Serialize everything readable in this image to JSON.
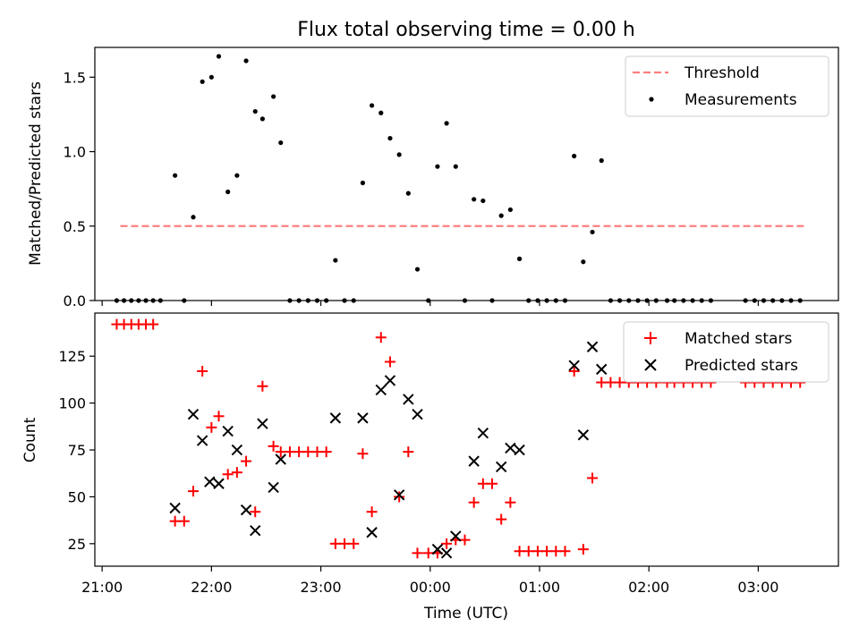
{
  "chart_data": [
    {
      "type": "scatter",
      "title": "Flux total observing time = 0.00 h",
      "ylabel": "Matched/Predicted stars",
      "xlabel": "",
      "ylim": [
        0,
        1.7
      ],
      "xlim": [
        "20:56",
        "03:44"
      ],
      "yticks": [
        0.0,
        0.5,
        1.0,
        1.5
      ],
      "ytick_labels": [
        "0.0",
        "0.5",
        "1.0",
        "1.5"
      ],
      "legend_position": "top-right",
      "grid": false,
      "threshold": {
        "name": "Threshold",
        "value": 0.5,
        "x_start": "21:10",
        "x_end": "03:25",
        "color": "#ff7f7f"
      },
      "measurements": {
        "name": "Measurements",
        "color": "#000000",
        "points": [
          {
            "x": "21:08",
            "y": 0.0
          },
          {
            "x": "21:12",
            "y": 0.0
          },
          {
            "x": "21:16",
            "y": 0.0
          },
          {
            "x": "21:20",
            "y": 0.0
          },
          {
            "x": "21:24",
            "y": 0.0
          },
          {
            "x": "21:28",
            "y": 0.0
          },
          {
            "x": "21:32",
            "y": 0.0
          },
          {
            "x": "21:40",
            "y": 0.84
          },
          {
            "x": "21:45",
            "y": 0.0
          },
          {
            "x": "21:50",
            "y": 0.56
          },
          {
            "x": "21:55",
            "y": 1.47
          },
          {
            "x": "22:00",
            "y": 1.5
          },
          {
            "x": "22:04",
            "y": 1.64
          },
          {
            "x": "22:09",
            "y": 0.73
          },
          {
            "x": "22:14",
            "y": 0.84
          },
          {
            "x": "22:19",
            "y": 1.61
          },
          {
            "x": "22:24",
            "y": 1.27
          },
          {
            "x": "22:28",
            "y": 1.22
          },
          {
            "x": "22:34",
            "y": 1.37
          },
          {
            "x": "22:38",
            "y": 1.06
          },
          {
            "x": "22:43",
            "y": 0.0
          },
          {
            "x": "22:48",
            "y": 0.0
          },
          {
            "x": "22:53",
            "y": 0.0
          },
          {
            "x": "22:58",
            "y": 0.0
          },
          {
            "x": "23:03",
            "y": 0.0
          },
          {
            "x": "23:08",
            "y": 0.27
          },
          {
            "x": "23:13",
            "y": 0.0
          },
          {
            "x": "23:18",
            "y": 0.0
          },
          {
            "x": "23:23",
            "y": 0.79
          },
          {
            "x": "23:28",
            "y": 1.31
          },
          {
            "x": "23:33",
            "y": 1.26
          },
          {
            "x": "23:38",
            "y": 1.09
          },
          {
            "x": "23:43",
            "y": 0.98
          },
          {
            "x": "23:48",
            "y": 0.72
          },
          {
            "x": "23:53",
            "y": 0.21
          },
          {
            "x": "23:59",
            "y": 0.0
          },
          {
            "x": "00:04",
            "y": 0.9
          },
          {
            "x": "00:09",
            "y": 1.19
          },
          {
            "x": "00:14",
            "y": 0.9
          },
          {
            "x": "00:19",
            "y": 0.0
          },
          {
            "x": "00:24",
            "y": 0.68
          },
          {
            "x": "00:29",
            "y": 0.67
          },
          {
            "x": "00:34",
            "y": 0.0
          },
          {
            "x": "00:39",
            "y": 0.57
          },
          {
            "x": "00:44",
            "y": 0.61
          },
          {
            "x": "00:49",
            "y": 0.28
          },
          {
            "x": "00:54",
            "y": 0.0
          },
          {
            "x": "00:59",
            "y": 0.0
          },
          {
            "x": "01:04",
            "y": 0.0
          },
          {
            "x": "01:09",
            "y": 0.0
          },
          {
            "x": "01:14",
            "y": 0.0
          },
          {
            "x": "01:19",
            "y": 0.97
          },
          {
            "x": "01:24",
            "y": 0.26
          },
          {
            "x": "01:29",
            "y": 0.46
          },
          {
            "x": "01:34",
            "y": 0.94
          },
          {
            "x": "01:39",
            "y": 0.0
          },
          {
            "x": "01:44",
            "y": 0.0
          },
          {
            "x": "01:49",
            "y": 0.0
          },
          {
            "x": "01:54",
            "y": 0.0
          },
          {
            "x": "01:59",
            "y": 0.0
          },
          {
            "x": "02:04",
            "y": 0.0
          },
          {
            "x": "02:10",
            "y": 0.0
          },
          {
            "x": "02:14",
            "y": 0.0
          },
          {
            "x": "02:19",
            "y": 0.0
          },
          {
            "x": "02:24",
            "y": 0.0
          },
          {
            "x": "02:29",
            "y": 0.0
          },
          {
            "x": "02:34",
            "y": 0.0
          },
          {
            "x": "02:53",
            "y": 0.0
          },
          {
            "x": "02:58",
            "y": 0.0
          },
          {
            "x": "03:03",
            "y": 0.0
          },
          {
            "x": "03:08",
            "y": 0.0
          },
          {
            "x": "03:13",
            "y": 0.0
          },
          {
            "x": "03:18",
            "y": 0.0
          },
          {
            "x": "03:23",
            "y": 0.0
          }
        ]
      }
    },
    {
      "type": "scatter",
      "title": "",
      "ylabel": "Count",
      "xlabel": "Time (UTC)",
      "ylim": [
        13,
        148
      ],
      "xlim": [
        "20:56",
        "03:44"
      ],
      "xticks": [
        "21:00",
        "22:00",
        "23:00",
        "00:00",
        "01:00",
        "02:00",
        "03:00"
      ],
      "yticks": [
        25,
        50,
        75,
        100,
        125
      ],
      "ytick_labels": [
        "25",
        "50",
        "75",
        "100",
        "125"
      ],
      "legend_position": "top-right",
      "grid": false,
      "series": [
        {
          "name": "Matched stars",
          "marker": "plus",
          "color": "#ff0000",
          "points": [
            {
              "x": "21:08",
              "y": 142
            },
            {
              "x": "21:12",
              "y": 142
            },
            {
              "x": "21:16",
              "y": 142
            },
            {
              "x": "21:20",
              "y": 142
            },
            {
              "x": "21:24",
              "y": 142
            },
            {
              "x": "21:28",
              "y": 142
            },
            {
              "x": "21:40",
              "y": 37
            },
            {
              "x": "21:45",
              "y": 37
            },
            {
              "x": "21:50",
              "y": 53
            },
            {
              "x": "21:55",
              "y": 117
            },
            {
              "x": "22:00",
              "y": 87
            },
            {
              "x": "22:04",
              "y": 93
            },
            {
              "x": "22:09",
              "y": 62
            },
            {
              "x": "22:14",
              "y": 63
            },
            {
              "x": "22:19",
              "y": 69
            },
            {
              "x": "22:24",
              "y": 42
            },
            {
              "x": "22:28",
              "y": 109
            },
            {
              "x": "22:34",
              "y": 77
            },
            {
              "x": "22:38",
              "y": 74
            },
            {
              "x": "22:43",
              "y": 74
            },
            {
              "x": "22:48",
              "y": 74
            },
            {
              "x": "22:53",
              "y": 74
            },
            {
              "x": "22:58",
              "y": 74
            },
            {
              "x": "23:03",
              "y": 74
            },
            {
              "x": "23:08",
              "y": 25
            },
            {
              "x": "23:13",
              "y": 25
            },
            {
              "x": "23:18",
              "y": 25
            },
            {
              "x": "23:23",
              "y": 73
            },
            {
              "x": "23:28",
              "y": 42
            },
            {
              "x": "23:33",
              "y": 135
            },
            {
              "x": "23:38",
              "y": 122
            },
            {
              "x": "23:43",
              "y": 50
            },
            {
              "x": "23:48",
              "y": 74
            },
            {
              "x": "23:53",
              "y": 20
            },
            {
              "x": "23:59",
              "y": 20
            },
            {
              "x": "00:04",
              "y": 20
            },
            {
              "x": "00:09",
              "y": 25
            },
            {
              "x": "00:14",
              "y": 27
            },
            {
              "x": "00:19",
              "y": 27
            },
            {
              "x": "00:24",
              "y": 47
            },
            {
              "x": "00:29",
              "y": 57
            },
            {
              "x": "00:34",
              "y": 57
            },
            {
              "x": "00:39",
              "y": 38
            },
            {
              "x": "00:44",
              "y": 47
            },
            {
              "x": "00:49",
              "y": 21
            },
            {
              "x": "00:54",
              "y": 21
            },
            {
              "x": "00:59",
              "y": 21
            },
            {
              "x": "01:04",
              "y": 21
            },
            {
              "x": "01:09",
              "y": 21
            },
            {
              "x": "01:14",
              "y": 21
            },
            {
              "x": "01:19",
              "y": 117
            },
            {
              "x": "01:24",
              "y": 22
            },
            {
              "x": "01:29",
              "y": 60
            },
            {
              "x": "01:34",
              "y": 111
            },
            {
              "x": "01:39",
              "y": 111
            },
            {
              "x": "01:44",
              "y": 111
            },
            {
              "x": "01:49",
              "y": 111
            },
            {
              "x": "01:54",
              "y": 111
            },
            {
              "x": "01:59",
              "y": 111
            },
            {
              "x": "02:04",
              "y": 111
            },
            {
              "x": "02:10",
              "y": 111
            },
            {
              "x": "02:14",
              "y": 111
            },
            {
              "x": "02:19",
              "y": 111
            },
            {
              "x": "02:24",
              "y": 111
            },
            {
              "x": "02:29",
              "y": 111
            },
            {
              "x": "02:34",
              "y": 111
            },
            {
              "x": "02:53",
              "y": 111
            },
            {
              "x": "02:58",
              "y": 111
            },
            {
              "x": "03:03",
              "y": 111
            },
            {
              "x": "03:08",
              "y": 111
            },
            {
              "x": "03:13",
              "y": 111
            },
            {
              "x": "03:18",
              "y": 111
            },
            {
              "x": "03:23",
              "y": 111
            }
          ]
        },
        {
          "name": "Predicted stars",
          "marker": "x",
          "color": "#000000",
          "points": [
            {
              "x": "21:40",
              "y": 44
            },
            {
              "x": "21:50",
              "y": 94
            },
            {
              "x": "21:55",
              "y": 80
            },
            {
              "x": "21:59",
              "y": 58
            },
            {
              "x": "22:04",
              "y": 57
            },
            {
              "x": "22:09",
              "y": 85
            },
            {
              "x": "22:14",
              "y": 75
            },
            {
              "x": "22:19",
              "y": 43
            },
            {
              "x": "22:24",
              "y": 32
            },
            {
              "x": "22:28",
              "y": 89
            },
            {
              "x": "22:34",
              "y": 55
            },
            {
              "x": "22:38",
              "y": 70
            },
            {
              "x": "23:08",
              "y": 92
            },
            {
              "x": "23:23",
              "y": 92
            },
            {
              "x": "23:28",
              "y": 31
            },
            {
              "x": "23:33",
              "y": 107
            },
            {
              "x": "23:38",
              "y": 112
            },
            {
              "x": "23:43",
              "y": 51
            },
            {
              "x": "23:48",
              "y": 102
            },
            {
              "x": "23:53",
              "y": 94
            },
            {
              "x": "00:04",
              "y": 22
            },
            {
              "x": "00:09",
              "y": 20
            },
            {
              "x": "00:14",
              "y": 29
            },
            {
              "x": "00:24",
              "y": 69
            },
            {
              "x": "00:29",
              "y": 84
            },
            {
              "x": "00:39",
              "y": 66
            },
            {
              "x": "00:44",
              "y": 76
            },
            {
              "x": "00:49",
              "y": 75
            },
            {
              "x": "01:19",
              "y": 120
            },
            {
              "x": "01:24",
              "y": 83
            },
            {
              "x": "01:29",
              "y": 130
            },
            {
              "x": "01:34",
              "y": 118
            }
          ]
        }
      ]
    }
  ]
}
